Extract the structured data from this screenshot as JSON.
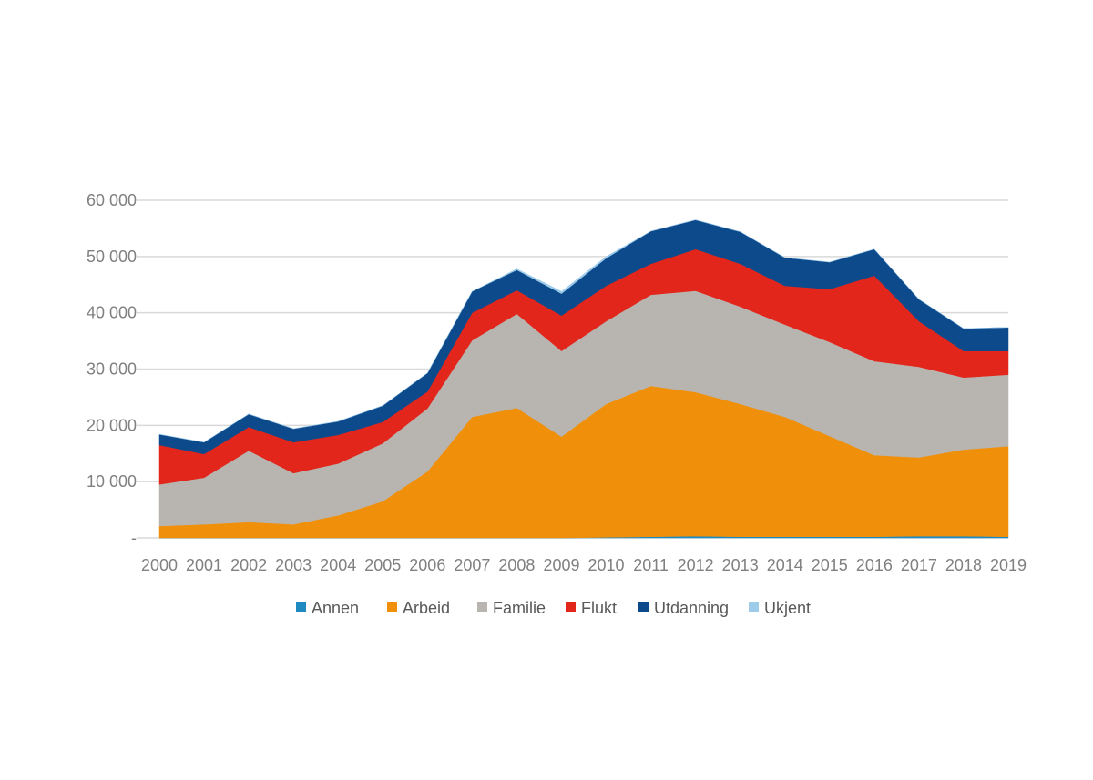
{
  "chart_data": {
    "type": "area",
    "stacked": true,
    "title": "",
    "xlabel": "",
    "ylabel": "",
    "x": [
      "2000",
      "2001",
      "2002",
      "2003",
      "2004",
      "2005",
      "2006",
      "2007",
      "2008",
      "2009",
      "2010",
      "2011",
      "2012",
      "2013",
      "2014",
      "2015",
      "2016",
      "2017",
      "2018",
      "2019"
    ],
    "ylim": [
      0,
      60000
    ],
    "yticks": [
      0,
      10000,
      20000,
      30000,
      40000,
      50000,
      60000
    ],
    "ytick_labels": [
      "-",
      "10 000",
      "20 000",
      "30 000",
      "40 000",
      "50 000",
      "60 000"
    ],
    "grid": true,
    "legend_position": "bottom",
    "series": [
      {
        "name": "Annen",
        "color": "#1f8ac0",
        "values": [
          0,
          0,
          0,
          0,
          0,
          0,
          0,
          0,
          0,
          0,
          100,
          200,
          300,
          200,
          200,
          200,
          200,
          300,
          300,
          200
        ]
      },
      {
        "name": "Arbeid",
        "color": "#f0900a",
        "values": [
          2100,
          2400,
          2800,
          2400,
          4000,
          6500,
          11800,
          21500,
          23100,
          18000,
          23700,
          26800,
          25600,
          23600,
          21300,
          17900,
          14500,
          14000,
          15400,
          16100
        ]
      },
      {
        "name": "Familie",
        "color": "#b8b4af",
        "values": [
          7400,
          8300,
          12700,
          9100,
          9200,
          10300,
          11200,
          13600,
          16700,
          15200,
          14700,
          16200,
          18000,
          17300,
          16400,
          16700,
          16700,
          16100,
          12800,
          12700
        ]
      },
      {
        "name": "Flukt",
        "color": "#e2261b",
        "values": [
          7000,
          4200,
          4200,
          5500,
          5100,
          3800,
          3000,
          4900,
          4200,
          6300,
          6300,
          5500,
          7400,
          7600,
          6900,
          9400,
          15200,
          8100,
          4700,
          4200
        ]
      },
      {
        "name": "Utdanning",
        "color": "#0d4a8c",
        "values": [
          1900,
          2100,
          2300,
          2400,
          2400,
          2900,
          3300,
          3800,
          3600,
          3900,
          4900,
          5800,
          5200,
          5700,
          5000,
          4800,
          4700,
          3900,
          4000,
          4200
        ]
      },
      {
        "name": "Ukjent",
        "color": "#9dcbea",
        "values": [
          0,
          0,
          0,
          0,
          0,
          0,
          0,
          0,
          200,
          400,
          300,
          0,
          0,
          0,
          0,
          0,
          0,
          0,
          0,
          0
        ]
      }
    ]
  }
}
